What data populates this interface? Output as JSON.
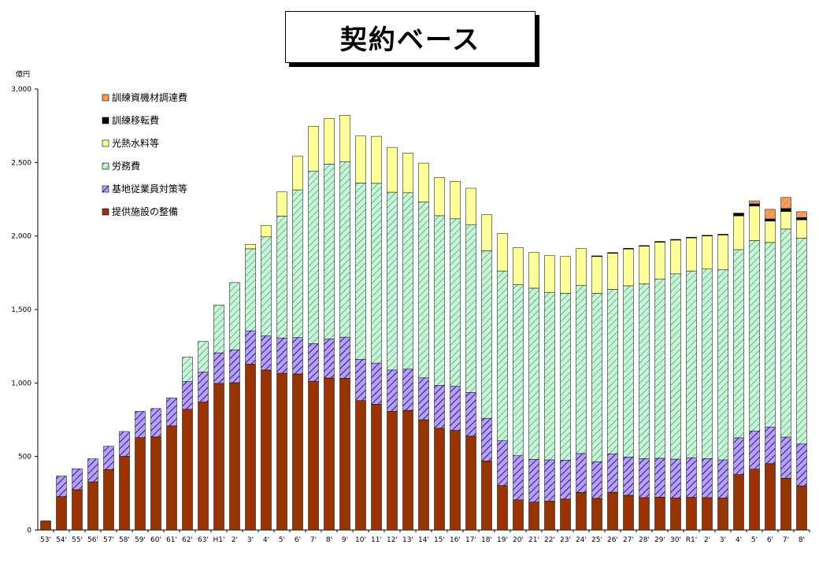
{
  "title": "契約ベース",
  "chart_data": {
    "type": "bar",
    "stacked": true,
    "title": "契約ベース",
    "ylabel": "億円",
    "ylim": [
      0,
      3000
    ],
    "yticks": [
      "0",
      "500",
      "1,000",
      "1,500",
      "2,000",
      "2,500",
      "3,000"
    ],
    "legend_position": "top-left",
    "categories": [
      "53'",
      "54'",
      "55'",
      "56'",
      "57'",
      "58'",
      "59'",
      "60'",
      "61'",
      "62'",
      "63'",
      "H1'",
      "2'",
      "3'",
      "4'",
      "5'",
      "6'",
      "7'",
      "8'",
      "9'",
      "10'",
      "11'",
      "12'",
      "13'",
      "14'",
      "15'",
      "16'",
      "17'",
      "18'",
      "19'",
      "20'",
      "21'",
      "22'",
      "23'",
      "24'",
      "25'",
      "26'",
      "27'",
      "28'",
      "29'",
      "30'",
      "R1'",
      "2'",
      "3'",
      "4'",
      "5'",
      "6'",
      "7'",
      "8'"
    ],
    "series": [
      {
        "name": "提供施設の整備",
        "color": "#993300",
        "values": [
          62,
          227,
          274,
          327,
          411,
          501,
          628,
          633,
          708,
          821,
          870,
          997,
          1002,
          1128,
          1088,
          1066,
          1061,
          1012,
          1034,
          1032,
          880,
          855,
          808,
          814,
          750,
          692,
          677,
          638,
          470,
          302,
          205,
          190,
          197,
          210,
          255,
          215,
          257,
          236,
          220,
          223,
          217,
          222,
          220,
          217,
          377,
          414,
          451,
          352,
          300
        ]
      },
      {
        "name": "基地従業員対策等",
        "color": "#6f3fd0",
        "values": [
          0,
          140,
          142,
          157,
          159,
          169,
          179,
          193,
          190,
          190,
          205,
          208,
          224,
          227,
          232,
          240,
          248,
          255,
          265,
          280,
          280,
          280,
          280,
          280,
          285,
          292,
          300,
          297,
          290,
          305,
          300,
          290,
          280,
          265,
          265,
          250,
          260,
          260,
          265,
          265,
          265,
          270,
          265,
          260,
          250,
          260,
          250,
          280,
          285
        ]
      },
      {
        "name": "労務費",
        "color": "#a8ecc2",
        "values": [
          0,
          0,
          0,
          0,
          0,
          0,
          0,
          0,
          0,
          165,
          207,
          326,
          457,
          558,
          674,
          829,
          1005,
          1175,
          1190,
          1192,
          1200,
          1223,
          1210,
          1200,
          1196,
          1154,
          1140,
          1140,
          1140,
          1155,
          1165,
          1165,
          1140,
          1135,
          1145,
          1145,
          1120,
          1165,
          1190,
          1220,
          1260,
          1270,
          1290,
          1295,
          1280,
          1295,
          1255,
          1415,
          1400
        ]
      },
      {
        "name": "光熱水料等",
        "color": "#ffff99",
        "values": [
          0,
          0,
          0,
          0,
          0,
          0,
          0,
          0,
          0,
          0,
          0,
          0,
          0,
          30,
          78,
          165,
          230,
          305,
          310,
          318,
          320,
          320,
          305,
          270,
          265,
          260,
          255,
          250,
          245,
          255,
          250,
          245,
          250,
          250,
          250,
          250,
          245,
          250,
          255,
          250,
          230,
          225,
          225,
          235,
          230,
          235,
          145,
          120,
          125
        ]
      },
      {
        "name": "訓練移転費",
        "color": "#000000",
        "values": [
          0,
          0,
          0,
          0,
          0,
          0,
          0,
          0,
          0,
          0,
          0,
          0,
          0,
          0,
          0,
          0,
          0,
          0,
          0,
          0,
          0,
          0,
          0,
          0,
          0,
          0,
          0,
          0,
          0,
          0,
          0,
          0,
          0,
          0,
          0,
          5,
          5,
          5,
          5,
          5,
          5,
          5,
          5,
          5,
          15,
          15,
          15,
          20,
          15
        ]
      },
      {
        "name": "訓練資機材調達費",
        "color": "#f5a060",
        "values": [
          0,
          0,
          0,
          0,
          0,
          0,
          0,
          0,
          0,
          0,
          0,
          0,
          0,
          0,
          0,
          0,
          0,
          0,
          0,
          0,
          0,
          0,
          0,
          0,
          0,
          0,
          0,
          0,
          0,
          0,
          0,
          0,
          0,
          0,
          0,
          0,
          0,
          0,
          0,
          0,
          0,
          0,
          0,
          0,
          5,
          20,
          65,
          75,
          40
        ]
      }
    ]
  }
}
